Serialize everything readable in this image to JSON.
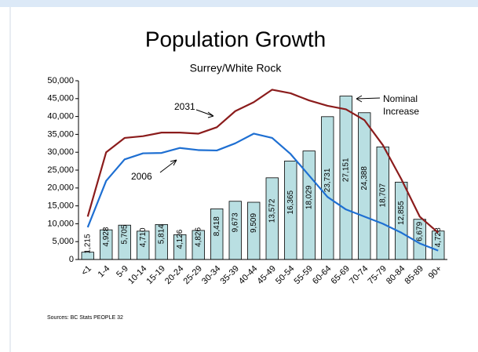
{
  "chart_data": {
    "type": "bar",
    "title": "Population Growth",
    "subtitle": "Surrey/White Rock",
    "source": "Sources: BC Stats PEOPLE 32",
    "categories": [
      "<1",
      "1-4",
      "5-9",
      "10-14",
      "15-19",
      "20-24",
      "25-29",
      "30-34",
      "35-39",
      "40-44",
      "45-49",
      "50-54",
      "55-59",
      "60-64",
      "65-69",
      "70-74",
      "75-79",
      "80-84",
      "85-89",
      "90+"
    ],
    "ylim": [
      0,
      50000
    ],
    "yticks": [
      0,
      {
        "value": 5000,
        "label": "5,000"
      },
      {
        "value": 10000,
        "label": "10,000"
      },
      {
        "value": 15000,
        "label": "15,000"
      },
      {
        "value": 20000,
        "label": "20,000"
      },
      {
        "value": 25000,
        "label": "25,000"
      },
      {
        "value": 30000,
        "label": "30,000"
      },
      {
        "value": 35000,
        "label": "35,000"
      },
      {
        "value": 40000,
        "label": "40,000"
      },
      {
        "value": 45000,
        "label": "45,000"
      },
      {
        "value": 50000,
        "label": "50,000"
      }
    ],
    "y2lim": [
      0,
      29700
    ],
    "series": [
      {
        "name": "Nominal Increase",
        "type": "bar",
        "axis": "y2",
        "color": "#b9dfe2",
        "values": [
          1215,
          4928,
          5705,
          4710,
          5814,
          4126,
          4826,
          8418,
          9673,
          9509,
          13572,
          16365,
          18029,
          23731,
          27151,
          24388,
          18707,
          12855,
          6679,
          4728
        ],
        "value_labels": [
          "1,215",
          "4,928",
          "5,705",
          "4,710",
          "5,814",
          "4,126",
          "4,826",
          "8,418",
          "9,673",
          "9,509",
          "13,572",
          "16,365",
          "18,029",
          "23,731",
          "27,151",
          "24,388",
          "18,707",
          "12,855",
          "6,679",
          "4,728"
        ]
      },
      {
        "name": "2031",
        "type": "line",
        "color": "#8b1c1c",
        "values": [
          12000,
          30000,
          34000,
          34500,
          35500,
          35500,
          35200,
          37000,
          41500,
          44000,
          47500,
          46500,
          44500,
          43000,
          42000,
          39000,
          32000,
          22500,
          12000,
          7500
        ]
      },
      {
        "name": "2006",
        "type": "line",
        "color": "#1e6fd2",
        "values": [
          9000,
          22000,
          28000,
          29700,
          29800,
          31200,
          30600,
          30500,
          32500,
          35200,
          34000,
          29500,
          23500,
          17500,
          14000,
          12000,
          10000,
          7500,
          4500,
          2500
        ]
      }
    ]
  }
}
